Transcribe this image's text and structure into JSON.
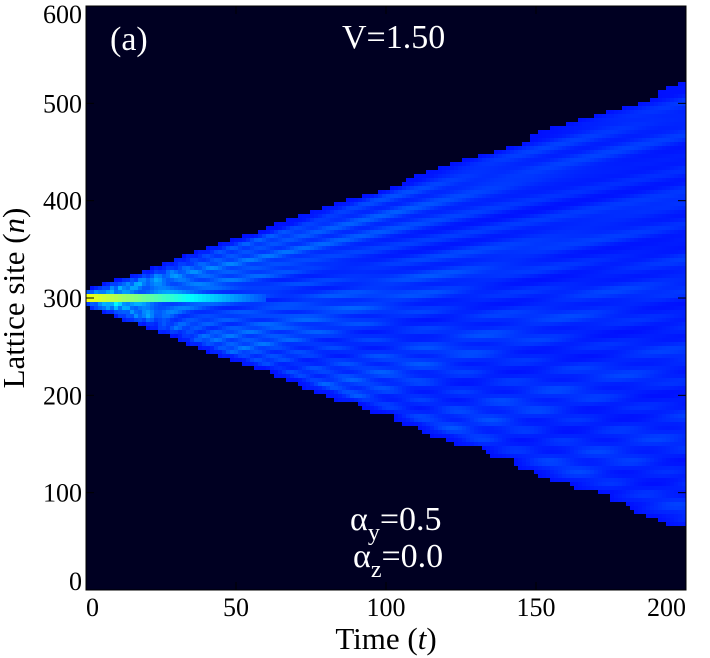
{
  "chart_data": {
    "type": "heatmap",
    "title": "",
    "panel_label": "(a)",
    "parameter_label": "V=1.50",
    "xlabel": {
      "main": "Time (",
      "var": "t",
      "close": ")"
    },
    "ylabel": {
      "main": "Lattice site (",
      "var": "n",
      "close": ")"
    },
    "xlim": [
      0,
      200
    ],
    "ylim": [
      0,
      600
    ],
    "xticks": [
      0,
      50,
      100,
      150,
      200
    ],
    "yticks": [
      0,
      100,
      200,
      300,
      400,
      500,
      600
    ],
    "xtick_labels": [
      "0",
      "50",
      "100",
      "150",
      "200"
    ],
    "ytick_labels": [
      "0",
      "100",
      "200",
      "300",
      "400",
      "500",
      "600"
    ],
    "initial_site": 300,
    "spread_edge_at_t200": {
      "upper": 520,
      "lower": 65
    },
    "colormap": "jet",
    "background_color": "#000022",
    "alpha_y": {
      "symbol": "α",
      "sub": "y",
      "value": "=0.5"
    },
    "alpha_z": {
      "symbol": "α",
      "sub": "z",
      "value": "=0.0"
    }
  }
}
